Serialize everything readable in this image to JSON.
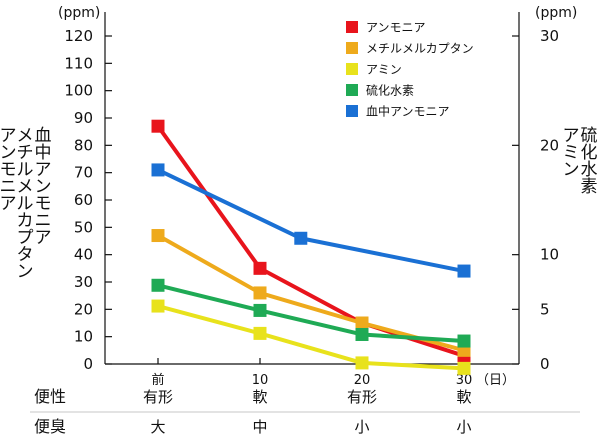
{
  "chart_data": {
    "type": "line",
    "left_axis": {
      "unit": "(ppm)",
      "label_columns": [
        "血中アンモニア",
        "メチルメルカプタン",
        "アンモニア"
      ],
      "ylim": [
        0,
        120
      ],
      "ticks": [
        0,
        10,
        20,
        30,
        40,
        50,
        60,
        70,
        80,
        90,
        100,
        110,
        120
      ]
    },
    "right_axis": {
      "unit": "(ppm)",
      "label_columns": [
        "硫化水素",
        "アミン"
      ],
      "ylim": [
        0,
        30
      ],
      "ticks": [
        0,
        5,
        10,
        20,
        30
      ]
    },
    "x_axis": {
      "day_ticks": [
        "前",
        "10",
        "20",
        "30"
      ],
      "day_unit": "（日）",
      "x_values": [
        0,
        10,
        20,
        30
      ]
    },
    "rows": [
      {
        "label": "便性",
        "values": [
          "有形",
          "軟",
          "有形",
          "軟"
        ]
      },
      {
        "label": "便臭",
        "values": [
          "大",
          "中",
          "小",
          "小"
        ]
      }
    ],
    "series": [
      {
        "name": "アンモニア",
        "color": "#e8141c",
        "axis": "left",
        "x": [
          0,
          10,
          20,
          30
        ],
        "y": [
          87,
          35,
          15,
          3
        ]
      },
      {
        "name": "メチルメルカプタン",
        "color": "#eeaa1c",
        "axis": "left",
        "x": [
          0,
          10,
          20,
          30
        ],
        "y": [
          47,
          26,
          15,
          5
        ]
      },
      {
        "name": "アミン",
        "color": "#e8e21c",
        "axis": "right",
        "x": [
          0,
          10,
          20,
          30
        ],
        "y": [
          5.3,
          2.8,
          0.1,
          -0.4
        ]
      },
      {
        "name": "硫化水素",
        "color": "#1faa55",
        "axis": "right",
        "x": [
          0,
          10,
          20,
          30
        ],
        "y": [
          7.2,
          4.9,
          2.7,
          2.1
        ]
      },
      {
        "name": "血中アンモニア",
        "color": "#1a70d4",
        "axis": "left",
        "x": [
          0,
          14,
          30
        ],
        "y": [
          71,
          46,
          34
        ]
      }
    ],
    "grid": false,
    "legend_position": "top-right"
  }
}
